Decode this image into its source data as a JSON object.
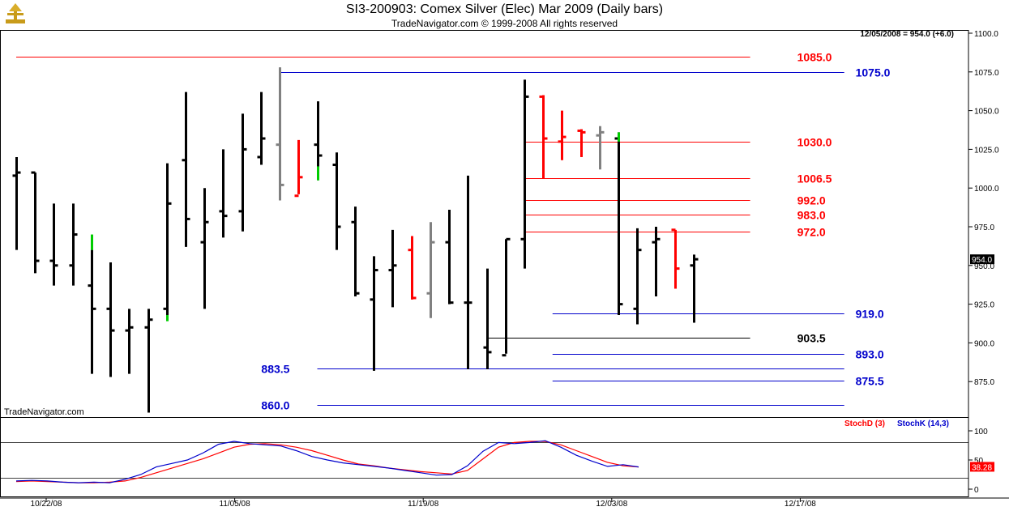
{
  "header": {
    "title": "SI3-200903:  Comex Silver (Elec) Mar 2009  (Daily bars)",
    "subtitle": "TradeNavigator.com © 1999-2008 All rights reserved",
    "quote": "12/05/2008 = 954.0 (+6.0)",
    "watermark": "TradeNavigator.com"
  },
  "colors": {
    "up_bar": "#000000",
    "down_bar": "#ff0000",
    "inside_bar": "#808080",
    "highlight": "#00cc00",
    "red_level": "#ff0000",
    "blue_level": "#0000cc",
    "black_level": "#000000",
    "stoch_d": "#ff0000",
    "stoch_k": "#0000cc",
    "background": "#ffffff",
    "axis": "#000000"
  },
  "chart_data": [
    {
      "type": "ohlc",
      "title": "SI3-200903:  Comex Silver (Elec) Mar 2009  (Daily bars)",
      "ylim": [
        850,
        1100
      ],
      "yticks": [
        "875.0",
        "900.0",
        "925.0",
        "950.0",
        "975.0",
        "1000.0",
        "1025.0",
        "1050.0",
        "1075.0",
        "1100.0"
      ],
      "ytick_values": [
        875,
        900,
        925,
        950,
        975,
        1000,
        1025,
        1050,
        1075,
        1100
      ],
      "last_price_label": "954.0",
      "x_tick_labels": [
        "10/22/08",
        "11/05/08",
        "11/19/08",
        "12/03/08",
        "12/17/08"
      ],
      "x_tick_index": [
        2,
        12,
        22,
        32,
        42
      ],
      "total_slots": 50,
      "bars": [
        {
          "o": 1008,
          "h": 1020,
          "l": 960,
          "c": 1010,
          "col": "black"
        },
        {
          "o": 1010,
          "h": 1010,
          "l": 945,
          "c": 953,
          "col": "black"
        },
        {
          "o": 953,
          "h": 990,
          "l": 937,
          "c": 950,
          "col": "black"
        },
        {
          "o": 950,
          "h": 990,
          "l": 937,
          "c": 970,
          "col": "black"
        },
        {
          "o": 937,
          "h": 960,
          "l": 880,
          "c": 922,
          "col": "black",
          "hi_top": [
            960,
            970
          ]
        },
        {
          "o": 922,
          "h": 952,
          "l": 878,
          "c": 908,
          "col": "black"
        },
        {
          "o": 908,
          "h": 922,
          "l": 880,
          "c": 910,
          "col": "black"
        },
        {
          "o": 910,
          "h": 922,
          "l": 855,
          "c": 915,
          "col": "black"
        },
        {
          "o": 922,
          "h": 1016,
          "l": 915,
          "c": 990,
          "col": "black",
          "hi_bot": [
            914,
            918
          ]
        },
        {
          "o": 1018,
          "h": 1062,
          "l": 962,
          "c": 980,
          "col": "black"
        },
        {
          "o": 965,
          "h": 1000,
          "l": 922,
          "c": 978,
          "col": "black"
        },
        {
          "o": 985,
          "h": 1025,
          "l": 968,
          "c": 982,
          "col": "black"
        },
        {
          "o": 985,
          "h": 1048,
          "l": 972,
          "c": 1025,
          "col": "black"
        },
        {
          "o": 1020,
          "h": 1062,
          "l": 1015,
          "c": 1032,
          "col": "black"
        },
        {
          "o": 1028,
          "h": 1078,
          "l": 992,
          "c": 1002,
          "col": "gray"
        },
        {
          "o": 995,
          "h": 1031,
          "l": 996,
          "c": 1007,
          "col": "red"
        },
        {
          "o": 1028,
          "h": 1056,
          "l": 1005,
          "c": 1021,
          "col": "black",
          "hi_bot": [
            1005,
            1014
          ]
        },
        {
          "o": 1015,
          "h": 1023,
          "l": 960,
          "c": 975,
          "col": "black"
        },
        {
          "o": 978,
          "h": 988,
          "l": 930,
          "c": 932,
          "col": "black"
        },
        {
          "o": 928,
          "h": 956,
          "l": 882,
          "c": 947,
          "col": "black"
        },
        {
          "o": 947,
          "h": 973,
          "l": 923,
          "c": 950,
          "col": "black"
        },
        {
          "o": 960,
          "h": 969,
          "l": 928,
          "c": 929,
          "col": "red"
        },
        {
          "o": 932,
          "h": 978,
          "l": 916,
          "c": 965,
          "col": "gray"
        },
        {
          "o": 965,
          "h": 986,
          "l": 925,
          "c": 926,
          "col": "black"
        },
        {
          "o": 926,
          "h": 1008,
          "l": 883,
          "c": 926,
          "col": "black"
        },
        {
          "o": 897,
          "h": 948,
          "l": 883,
          "c": 894,
          "col": "black"
        },
        {
          "o": 892,
          "h": 967,
          "l": 893,
          "c": 967,
          "col": "black"
        },
        {
          "o": 967,
          "h": 1070,
          "l": 948,
          "c": 1059,
          "col": "black"
        },
        {
          "o": 1059,
          "h": 1060,
          "l": 1006,
          "c": 1032,
          "col": "red"
        },
        {
          "o": 1030,
          "h": 1050,
          "l": 1018,
          "c": 1033,
          "col": "red"
        },
        {
          "o": 1037,
          "h": 1038,
          "l": 1020,
          "c": 1036,
          "col": "red"
        },
        {
          "o": 1034,
          "h": 1040,
          "l": 1012,
          "c": 1036,
          "col": "gray"
        },
        {
          "o": 1032,
          "h": 1036,
          "l": 918,
          "c": 925,
          "col": "black",
          "hi_top": [
            1030,
            1036
          ]
        },
        {
          "o": 922,
          "h": 974,
          "l": 912,
          "c": 960,
          "col": "black"
        },
        {
          "o": 965,
          "h": 975,
          "l": 930,
          "c": 967,
          "col": "black"
        },
        {
          "o": 973,
          "h": 973,
          "l": 935,
          "c": 948,
          "col": "red"
        },
        {
          "o": 950,
          "h": 957,
          "l": 913,
          "c": 954,
          "col": "black"
        }
      ],
      "levels": [
        {
          "label": "1085.0",
          "value": 1085.0,
          "color": "red_level",
          "x_from": 0,
          "x_to": 39,
          "lbl_at": 41.5
        },
        {
          "label": "1075.0",
          "value": 1075.0,
          "color": "blue_level",
          "x_from": 14,
          "x_to": 44,
          "lbl_at": 44.6
        },
        {
          "label": "1030.0",
          "value": 1030.0,
          "color": "red_level",
          "x_from": 27,
          "x_to": 39,
          "lbl_at": 41.5
        },
        {
          "label": "1006.5",
          "value": 1006.5,
          "color": "red_level",
          "x_from": 27,
          "x_to": 39,
          "lbl_at": 41.5
        },
        {
          "label": "992.0",
          "value": 992.0,
          "color": "red_level",
          "x_from": 27,
          "x_to": 39,
          "lbl_at": 41.5
        },
        {
          "label": "983.0",
          "value": 983.0,
          "color": "red_level",
          "x_from": 27,
          "x_to": 39,
          "lbl_at": 41.5
        },
        {
          "label": "972.0",
          "value": 972.0,
          "color": "red_level",
          "x_from": 27,
          "x_to": 39,
          "lbl_at": 41.5
        },
        {
          "label": "919.0",
          "value": 919.0,
          "color": "blue_level",
          "x_from": 28.5,
          "x_to": 44,
          "lbl_at": 44.6
        },
        {
          "label": "903.5",
          "value": 903.5,
          "color": "black_level",
          "x_from": 25,
          "x_to": 39,
          "lbl_at": 41.5
        },
        {
          "label": "893.0",
          "value": 893.0,
          "color": "blue_level",
          "x_from": 28.5,
          "x_to": 44,
          "lbl_at": 44.6
        },
        {
          "label": "883.5",
          "value": 883.5,
          "color": "blue_level",
          "x_from": 16,
          "x_to": 44,
          "lbl_at": 13.5
        },
        {
          "label": "875.5",
          "value": 875.5,
          "color": "blue_level",
          "x_from": 28.5,
          "x_to": 44,
          "lbl_at": 44.6
        },
        {
          "label": "860.0",
          "value": 860.0,
          "color": "blue_level",
          "x_from": 16,
          "x_to": 44,
          "lbl_at": 13.5
        }
      ]
    },
    {
      "type": "line",
      "title": "StochD (3)   StochK (14,3)",
      "ylim": [
        0,
        100
      ],
      "yticks": [
        "0",
        "50",
        "100"
      ],
      "ytick_values": [
        0,
        50,
        100
      ],
      "levels": [
        80,
        20
      ],
      "last_value_label": "38.28",
      "series": [
        {
          "name": "StochD (3)",
          "color": "stoch_d",
          "values": [
            13,
            14,
            13,
            12,
            11,
            11,
            12,
            14,
            20,
            28,
            36,
            44,
            52,
            62,
            72,
            77,
            78,
            76,
            72,
            66,
            58,
            50,
            43,
            40,
            36,
            33,
            30,
            28,
            26,
            32,
            52,
            72,
            80,
            82,
            82,
            76,
            66,
            56,
            46,
            40,
            38
          ]
        },
        {
          "name": "StochK (14,3)",
          "color": "stoch_k",
          "values": [
            14,
            15,
            14,
            12,
            11,
            12,
            11,
            17,
            25,
            38,
            44,
            50,
            62,
            77,
            82,
            78,
            76,
            74,
            66,
            56,
            50,
            45,
            42,
            39,
            36,
            32,
            28,
            24,
            25,
            40,
            65,
            80,
            78,
            80,
            83,
            72,
            58,
            48,
            39,
            42,
            38
          ]
        }
      ]
    }
  ]
}
